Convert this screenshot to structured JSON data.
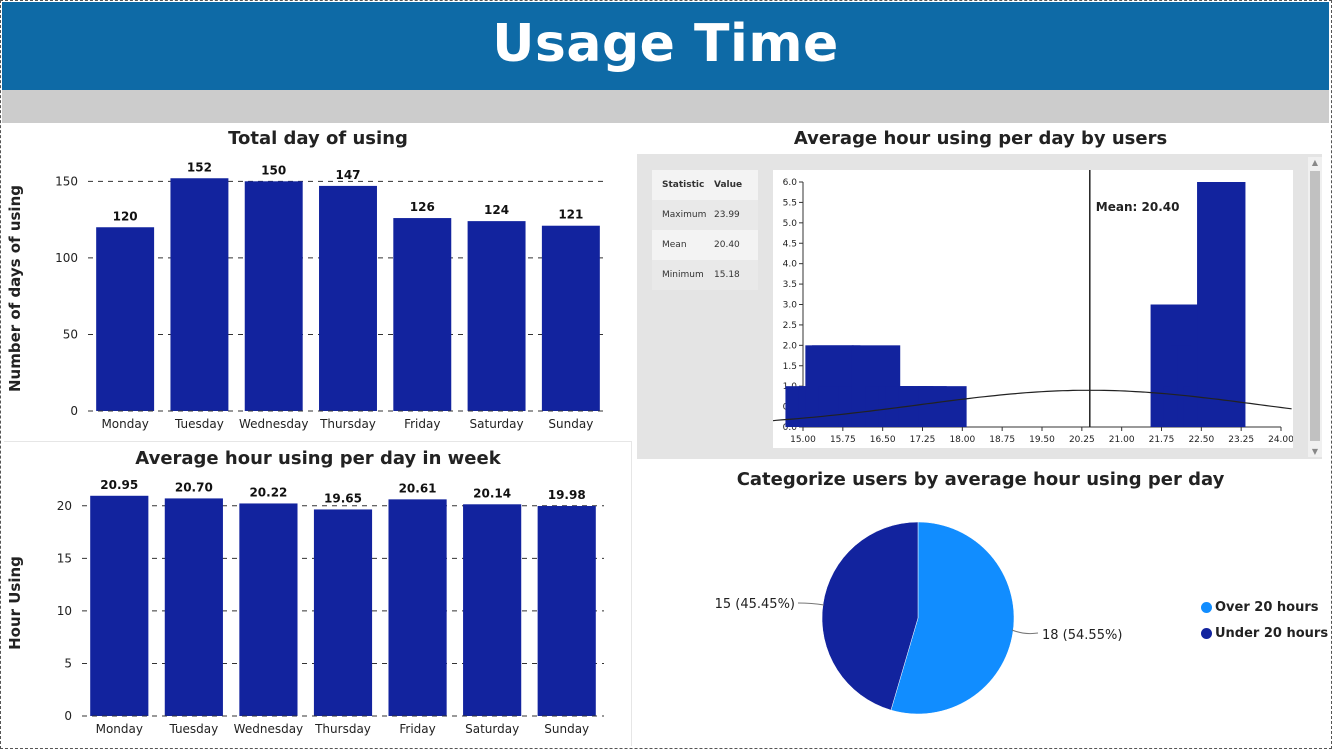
{
  "header": {
    "title": "Usage Time"
  },
  "colors": {
    "header_bg": "#0e6aa6",
    "bar": "#12239e",
    "pie_over": "#118dff",
    "pie_under": "#12239e"
  },
  "chart_data": [
    {
      "id": "total_days",
      "type": "bar",
      "title": "Total day of using",
      "xlabel": "",
      "ylabel": "Number of days of using",
      "categories": [
        "Monday",
        "Tuesday",
        "Wednesday",
        "Thursday",
        "Friday",
        "Saturday",
        "Sunday"
      ],
      "values": [
        120,
        152,
        150,
        147,
        126,
        124,
        121
      ],
      "ylim": [
        0,
        160
      ],
      "yticks": [
        0,
        50,
        100,
        150
      ],
      "grid": true
    },
    {
      "id": "avg_hour_week",
      "type": "bar",
      "title": "Average hour using per day in week",
      "xlabel": "",
      "ylabel": "Hour Using",
      "categories": [
        "Monday",
        "Tuesday",
        "Wednesday",
        "Thursday",
        "Friday",
        "Saturday",
        "Sunday"
      ],
      "values": [
        20.95,
        20.7,
        20.22,
        19.65,
        20.61,
        20.14,
        19.98
      ],
      "ylim": [
        0,
        21.5
      ],
      "yticks": [
        0,
        5,
        10,
        15,
        20
      ],
      "grid": true
    },
    {
      "id": "avg_hour_users",
      "type": "bar",
      "title": "Average hour using per day by users",
      "xlim": [
        15.0,
        24.0
      ],
      "ylim": [
        0,
        6.0
      ],
      "xticks": [
        "15.00",
        "15.75",
        "16.50",
        "17.25",
        "18.00",
        "18.75",
        "19.50",
        "20.25",
        "21.00",
        "21.75",
        "22.50",
        "23.25",
        "24.00"
      ],
      "yticks": [
        "0.0",
        "0.5",
        "1.0",
        "1.5",
        "2.0",
        "2.5",
        "3.0",
        "3.5",
        "4.0",
        "4.5",
        "5.0",
        "5.5",
        "6.0"
      ],
      "bins": [
        {
          "x": 15.125,
          "count": 1
        },
        {
          "x": 15.375,
          "count": 1
        },
        {
          "x": 15.5,
          "count": 2
        },
        {
          "x": 15.625,
          "count": 2
        },
        {
          "x": 15.75,
          "count": 1
        },
        {
          "x": 16.125,
          "count": 1
        },
        {
          "x": 16.375,
          "count": 2
        },
        {
          "x": 16.625,
          "count": 1
        },
        {
          "x": 16.875,
          "count": 1
        },
        {
          "x": 17.0,
          "count": 1
        },
        {
          "x": 17.25,
          "count": 1
        },
        {
          "x": 17.625,
          "count": 1
        },
        {
          "x": 22.0,
          "count": 3
        },
        {
          "x": 22.25,
          "count": 1
        },
        {
          "x": 22.375,
          "count": 2
        },
        {
          "x": 22.5,
          "count": 2
        },
        {
          "x": 22.625,
          "count": 1
        },
        {
          "x": 22.75,
          "count": 3
        },
        {
          "x": 22.875,
          "count": 6
        }
      ],
      "mean_label": "Mean: 20.40",
      "mean": 20.4,
      "stats": {
        "headers": [
          "Statistic",
          "Value"
        ],
        "rows": [
          [
            "Maximum",
            "23.99"
          ],
          [
            "Mean",
            "20.40"
          ],
          [
            "Minimum",
            "15.18"
          ]
        ]
      }
    },
    {
      "id": "categorize_users",
      "type": "pie",
      "title": "Categorize users by average hour using per day",
      "slices": [
        {
          "name": "Over 20 hours",
          "value": 18,
          "label": "18 (54.55%)"
        },
        {
          "name": "Under 20 hours",
          "value": 15,
          "label": "15 (45.45%)"
        }
      ],
      "legend": "right"
    }
  ]
}
